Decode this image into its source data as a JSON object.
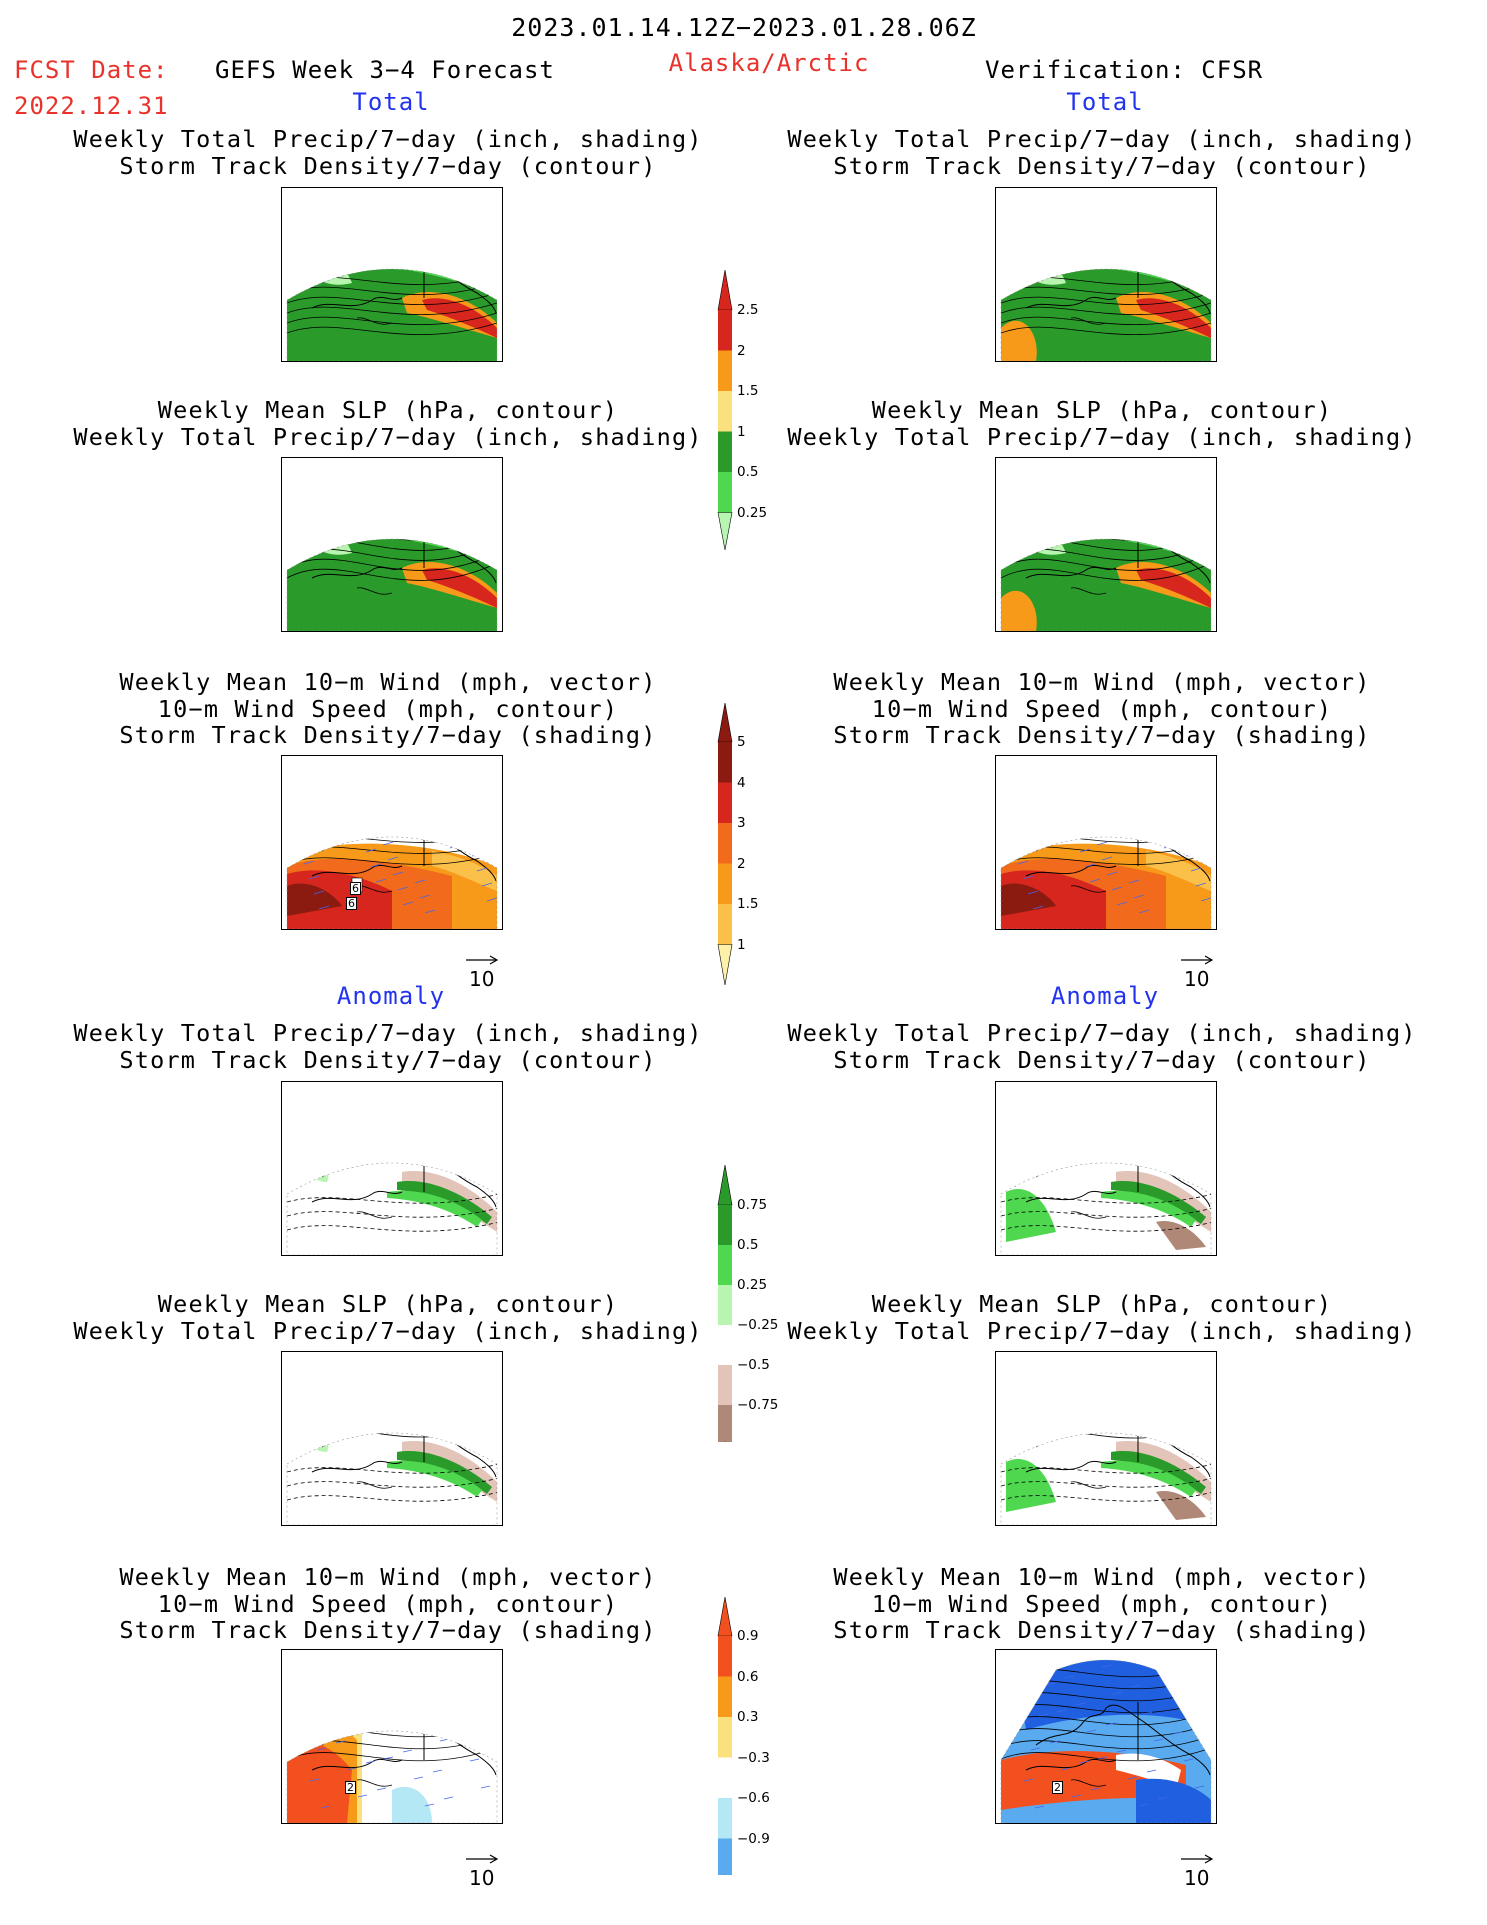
{
  "header": {
    "period": "2023.01.14.12Z−2023.01.28.06Z",
    "fcst_label": "FCST Date:",
    "fcst_date": "2022.12.31",
    "product": "GEFS Week 3−4 Forecast",
    "region": "Alaska/Arctic",
    "verification": "Verification: CFSR"
  },
  "sections": {
    "total": "Total",
    "anomaly": "Anomaly"
  },
  "panel_titles": {
    "precip_storm": [
      "Weekly Total Precip/7−day (inch, shading)",
      "Storm Track Density/7−day (contour)"
    ],
    "slp_precip": [
      "Weekly Mean SLP (hPa, contour)",
      "Weekly Total Precip/7−day (inch, shading)"
    ],
    "wind_storm": [
      "Weekly Mean 10−m Wind (mph, vector)",
      "10−m Wind Speed (mph, contour)",
      "Storm Track Density/7−day (shading)"
    ]
  },
  "vector_reference": "10",
  "colorbars": {
    "precip_total": {
      "labels": [
        "2.5",
        "2",
        "1.5",
        "1",
        "0.5",
        "0.25"
      ],
      "colors": [
        "#d7261e",
        "#f79a1a",
        "#fbe17e",
        "#2a9a2a",
        "#4fd84f",
        "#b8f5b0"
      ]
    },
    "storm_total": {
      "labels": [
        "5",
        "4",
        "3",
        "2",
        "1.5",
        "1"
      ],
      "colors": [
        "#8b1a10",
        "#d7261e",
        "#f26b1d",
        "#f79a1a",
        "#fbc04a",
        "#fdf0a8"
      ]
    },
    "precip_anom": {
      "labels": [
        "0.75",
        "0.5",
        "0.25",
        "−0.25",
        "−0.5",
        "−0.75"
      ],
      "colors": [
        "#2a9a2a",
        "#4fd84f",
        "#b8f5b0",
        "#ffffff",
        "#e3c4b8",
        "#b08878",
        "#6e4a3a"
      ]
    },
    "storm_anom": {
      "labels": [
        "0.9",
        "0.6",
        "0.3",
        "−0.3",
        "−0.6",
        "−0.9"
      ],
      "colors": [
        "#f2501e",
        "#f79a1a",
        "#fbe17e",
        "#ffffff",
        "#b4e8f5",
        "#5aaaf0",
        "#2060e0"
      ]
    }
  },
  "chart_data": {
    "type": "heatmap",
    "layout": "6 rows x 2 columns of Alaska/Arctic map panels (left: GEFS forecast, right: CFSR verification)",
    "panels": [
      {
        "section": "Total",
        "field": "precip_storm",
        "label_value": null
      },
      {
        "section": "Total",
        "field": "slp_precip",
        "label_value": null
      },
      {
        "section": "Total",
        "field": "wind_storm",
        "label_value": "6"
      },
      {
        "section": "Anomaly",
        "field": "precip_storm",
        "label_value": null
      },
      {
        "section": "Anomaly",
        "field": "slp_precip",
        "label_value": null
      },
      {
        "section": "Anomaly",
        "field": "wind_storm",
        "label_value": "2"
      }
    ],
    "map_labels": {
      "left_wind_total": "6",
      "left_wind_anom": "2",
      "right_wind_anom": "2"
    }
  }
}
